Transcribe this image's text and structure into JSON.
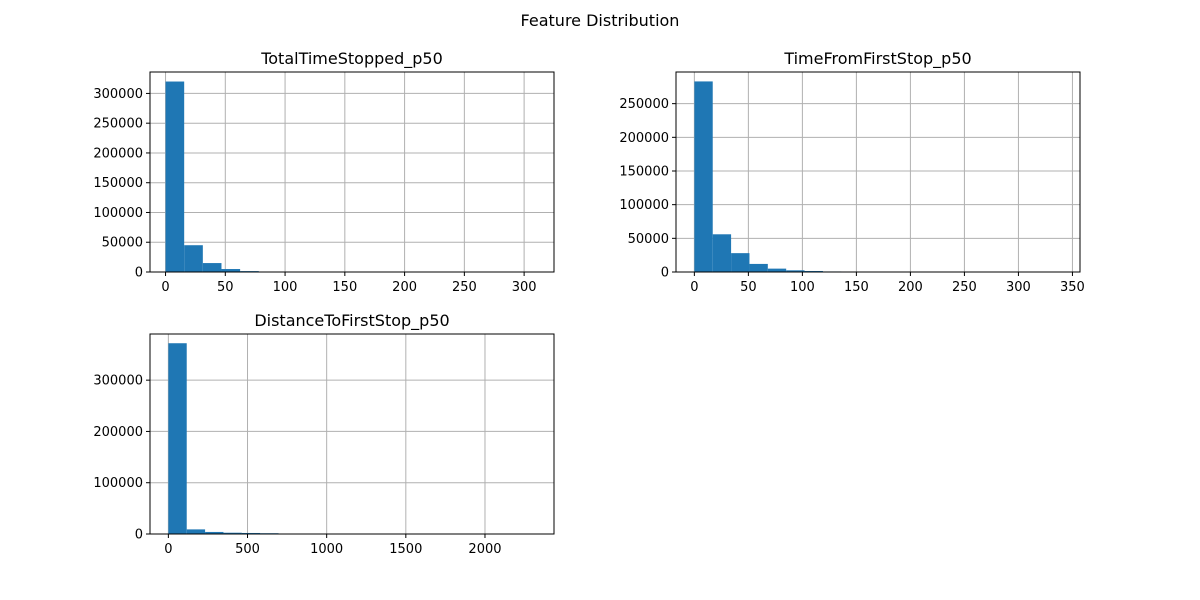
{
  "figure": {
    "title": "Feature Distribution"
  },
  "colors": {
    "bar": "#1f77b4",
    "grid": "#b0b0b0"
  },
  "chart_data": [
    {
      "type": "bar",
      "title": "TotalTimeStopped_p50",
      "xlim": [
        -13,
        325
      ],
      "ylim": [
        0,
        336000
      ],
      "xticks": [
        0,
        50,
        100,
        150,
        200,
        250,
        300
      ],
      "yticks": [
        0,
        50000,
        100000,
        150000,
        200000,
        250000,
        300000
      ],
      "grid": true,
      "bin_edges": [
        0,
        15.6,
        31.2,
        46.8,
        62.4,
        78,
        93.6,
        109.2,
        124.8,
        140.4,
        156,
        171.6,
        187.2,
        202.8,
        218.4,
        234,
        249.6,
        265.2,
        280.8,
        296.4,
        312
      ],
      "values": [
        320000,
        45000,
        15000,
        5000,
        1500,
        500,
        250,
        100,
        60,
        30,
        20,
        10,
        5,
        5,
        2,
        2,
        1,
        1,
        1,
        1
      ]
    },
    {
      "type": "bar",
      "title": "TimeFromFirstStop_p50",
      "xlim": [
        -17,
        357
      ],
      "ylim": [
        0,
        297000
      ],
      "xticks": [
        0,
        50,
        100,
        150,
        200,
        250,
        300,
        350
      ],
      "yticks": [
        0,
        50000,
        100000,
        150000,
        200000,
        250000
      ],
      "grid": true,
      "bin_edges": [
        0,
        17,
        34,
        51,
        68,
        85,
        102,
        119,
        136,
        153,
        170,
        187,
        204,
        221,
        238,
        255,
        272,
        289,
        306,
        323,
        340
      ],
      "values": [
        283000,
        56000,
        28000,
        12000,
        5000,
        2500,
        1500,
        800,
        500,
        250,
        150,
        100,
        50,
        30,
        20,
        10,
        5,
        5,
        2,
        2
      ]
    },
    {
      "type": "bar",
      "title": "DistanceToFirstStop_p50",
      "xlim": [
        -116,
        2436
      ],
      "ylim": [
        0,
        390000
      ],
      "xticks": [
        0,
        500,
        1000,
        1500,
        2000
      ],
      "yticks": [
        0,
        100000,
        200000,
        300000
      ],
      "grid": true,
      "bin_edges": [
        0,
        116,
        232,
        348,
        464,
        580,
        696,
        812,
        928,
        1044,
        1160,
        1276,
        1392,
        1508,
        1624,
        1740,
        1856,
        1972,
        2088,
        2204,
        2320
      ],
      "values": [
        372000,
        9000,
        4000,
        2500,
        2000,
        1500,
        800,
        500,
        300,
        200,
        150,
        100,
        80,
        60,
        40,
        30,
        20,
        15,
        10,
        5
      ]
    }
  ]
}
